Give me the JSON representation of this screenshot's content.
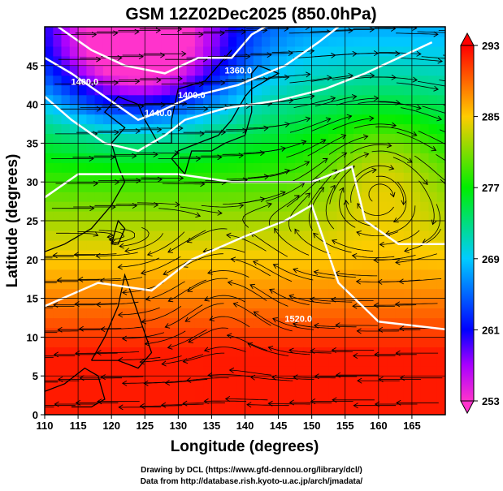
{
  "chart_data": {
    "type": "heatmap",
    "title": "GSM 12Z02Dec2025 (850.0hPa)",
    "xlabel": "Longitude (degrees)",
    "ylabel": "Latitude  (degrees)",
    "xlim": [
      110,
      170
    ],
    "ylim": [
      0,
      50
    ],
    "x_ticks": [
      110,
      115,
      120,
      125,
      130,
      135,
      140,
      145,
      150,
      155,
      160,
      165
    ],
    "y_ticks": [
      0,
      5,
      10,
      15,
      20,
      25,
      30,
      35,
      40,
      45
    ],
    "grid": true,
    "colorbar": {
      "ticks": [
        253,
        261,
        269,
        277,
        285,
        293
      ],
      "range": [
        253,
        293
      ],
      "colors": [
        "#ff33cc",
        "#0000ff",
        "#00ccff",
        "#00ff00",
        "#ffcc00",
        "#ff0000"
      ]
    },
    "contour_labels": [
      {
        "text": "1400.0",
        "lon": 116,
        "lat": 42.5
      },
      {
        "text": "1400.0",
        "lon": 132,
        "lat": 40.8
      },
      {
        "text": "1440.0",
        "lon": 127,
        "lat": 38.5
      },
      {
        "text": "1360.0",
        "lon": 139,
        "lat": 44
      },
      {
        "text": "1520.0",
        "lon": 148,
        "lat": 12
      }
    ]
  },
  "footer": {
    "credit_line1": "Drawing by DCL (https://www.gfd-dennou.org/library/dcl/)",
    "credit_line2": "Data from http://database.rish.kyoto-u.ac.jp/arch/jmadata/"
  }
}
